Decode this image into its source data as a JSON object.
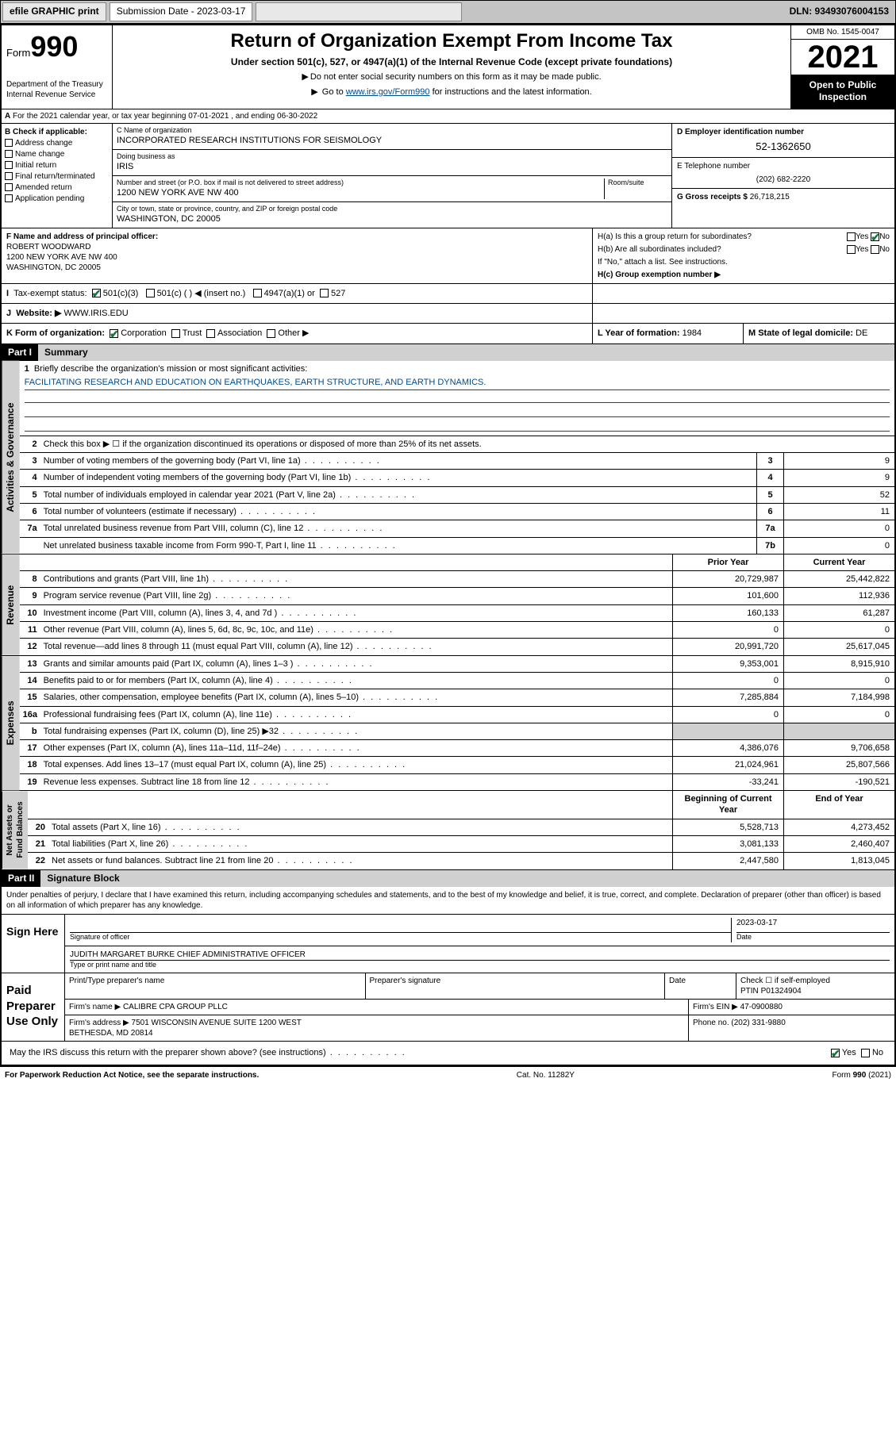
{
  "topbar": {
    "efile": "efile GRAPHIC print",
    "submission_label": "Submission Date - 2023-03-17",
    "dln": "DLN: 93493076004153"
  },
  "header": {
    "form_label": "Form",
    "form_number": "990",
    "dept": "Department of the Treasury\nInternal Revenue Service",
    "title": "Return of Organization Exempt From Income Tax",
    "subtitle": "Under section 501(c), 527, or 4947(a)(1) of the Internal Revenue Code (except private foundations)",
    "note1": "Do not enter social security numbers on this form as it may be made public.",
    "note2_pre": "Go to ",
    "note2_link": "www.irs.gov/Form990",
    "note2_post": " for instructions and the latest information.",
    "omb": "OMB No. 1545-0047",
    "year": "2021",
    "inspection": "Open to Public Inspection"
  },
  "A": {
    "text": "For the 2021 calendar year, or tax year beginning 07-01-2021   , and ending 06-30-2022"
  },
  "B": {
    "title": "B Check if applicable:",
    "opts": [
      "Address change",
      "Name change",
      "Initial return",
      "Final return/terminated",
      "Amended return",
      "Application pending"
    ]
  },
  "C": {
    "name_lbl": "C Name of organization",
    "name": "INCORPORATED RESEARCH INSTITUTIONS FOR SEISMOLOGY",
    "dba_lbl": "Doing business as",
    "dba": "IRIS",
    "street_lbl": "Number and street (or P.O. box if mail is not delivered to street address)",
    "room_lbl": "Room/suite",
    "street": "1200 NEW YORK AVE NW 400",
    "city_lbl": "City or town, state or province, country, and ZIP or foreign postal code",
    "city": "WASHINGTON, DC  20005"
  },
  "D": {
    "lbl": "D Employer identification number",
    "val": "52-1362650"
  },
  "E": {
    "lbl": "E Telephone number",
    "val": "(202) 682-2220"
  },
  "G": {
    "lbl": "G Gross receipts $",
    "val": "26,718,215"
  },
  "F": {
    "lbl": "F  Name and address of principal officer:",
    "name": "ROBERT WOODWARD",
    "addr1": "1200 NEW YORK AVE NW 400",
    "addr2": "WASHINGTON, DC  20005"
  },
  "H": {
    "a": "H(a)  Is this a group return for subordinates?",
    "b": "H(b)  Are all subordinates included?",
    "b_note": "If \"No,\" attach a list. See instructions.",
    "c": "H(c)  Group exemption number ▶",
    "yes": "Yes",
    "no": "No"
  },
  "I": {
    "lbl": "Tax-exempt status:",
    "opts": [
      "501(c)(3)",
      "501(c) (  ) ◀ (insert no.)",
      "4947(a)(1) or",
      "527"
    ]
  },
  "J": {
    "lbl": "Website: ▶",
    "val": "WWW.IRIS.EDU"
  },
  "K": {
    "lbl": "K Form of organization:",
    "opts": [
      "Corporation",
      "Trust",
      "Association",
      "Other ▶"
    ]
  },
  "L": {
    "lbl": "L Year of formation:",
    "val": "1984"
  },
  "M": {
    "lbl": "M State of legal domicile:",
    "val": "DE"
  },
  "partI": {
    "hdr": "Part I",
    "title": "Summary"
  },
  "summary": {
    "q1": "Briefly describe the organization's mission or most significant activities:",
    "mission": "FACILITATING RESEARCH AND EDUCATION ON EARTHQUAKES, EARTH STRUCTURE, AND EARTH DYNAMICS.",
    "q2": "Check this box ▶ ☐  if the organization discontinued its operations or disposed of more than 25% of its net assets.",
    "lines_gov": [
      {
        "n": "3",
        "t": "Number of voting members of the governing body (Part VI, line 1a)",
        "box": "3",
        "v": "9"
      },
      {
        "n": "4",
        "t": "Number of independent voting members of the governing body (Part VI, line 1b)",
        "box": "4",
        "v": "9"
      },
      {
        "n": "5",
        "t": "Total number of individuals employed in calendar year 2021 (Part V, line 2a)",
        "box": "5",
        "v": "52"
      },
      {
        "n": "6",
        "t": "Total number of volunteers (estimate if necessary)",
        "box": "6",
        "v": "11"
      },
      {
        "n": "7a",
        "t": "Total unrelated business revenue from Part VIII, column (C), line 12",
        "box": "7a",
        "v": "0"
      },
      {
        "n": "",
        "t": "Net unrelated business taxable income from Form 990-T, Part I, line 11",
        "box": "7b",
        "v": "0"
      }
    ],
    "col_prior": "Prior Year",
    "col_current": "Current Year",
    "col_boy": "Beginning of Current Year",
    "col_eoy": "End of Year",
    "revenue": [
      {
        "n": "8",
        "t": "Contributions and grants (Part VIII, line 1h)",
        "p": "20,729,987",
        "c": "25,442,822"
      },
      {
        "n": "9",
        "t": "Program service revenue (Part VIII, line 2g)",
        "p": "101,600",
        "c": "112,936"
      },
      {
        "n": "10",
        "t": "Investment income (Part VIII, column (A), lines 3, 4, and 7d )",
        "p": "160,133",
        "c": "61,287"
      },
      {
        "n": "11",
        "t": "Other revenue (Part VIII, column (A), lines 5, 6d, 8c, 9c, 10c, and 11e)",
        "p": "0",
        "c": "0"
      },
      {
        "n": "12",
        "t": "Total revenue—add lines 8 through 11 (must equal Part VIII, column (A), line 12)",
        "p": "20,991,720",
        "c": "25,617,045"
      }
    ],
    "expenses": [
      {
        "n": "13",
        "t": "Grants and similar amounts paid (Part IX, column (A), lines 1–3 )",
        "p": "9,353,001",
        "c": "8,915,910"
      },
      {
        "n": "14",
        "t": "Benefits paid to or for members (Part IX, column (A), line 4)",
        "p": "0",
        "c": "0"
      },
      {
        "n": "15",
        "t": "Salaries, other compensation, employee benefits (Part IX, column (A), lines 5–10)",
        "p": "7,285,884",
        "c": "7,184,998"
      },
      {
        "n": "16a",
        "t": "Professional fundraising fees (Part IX, column (A), line 11e)",
        "p": "0",
        "c": "0"
      },
      {
        "n": "b",
        "t": "Total fundraising expenses (Part IX, column (D), line 25) ▶32",
        "p": "shade",
        "c": "shade"
      },
      {
        "n": "17",
        "t": "Other expenses (Part IX, column (A), lines 11a–11d, 11f–24e)",
        "p": "4,386,076",
        "c": "9,706,658"
      },
      {
        "n": "18",
        "t": "Total expenses. Add lines 13–17 (must equal Part IX, column (A), line 25)",
        "p": "21,024,961",
        "c": "25,807,566"
      },
      {
        "n": "19",
        "t": "Revenue less expenses. Subtract line 18 from line 12",
        "p": "-33,241",
        "c": "-190,521"
      }
    ],
    "netassets": [
      {
        "n": "20",
        "t": "Total assets (Part X, line 16)",
        "p": "5,528,713",
        "c": "4,273,452"
      },
      {
        "n": "21",
        "t": "Total liabilities (Part X, line 26)",
        "p": "3,081,133",
        "c": "2,460,407"
      },
      {
        "n": "22",
        "t": "Net assets or fund balances. Subtract line 21 from line 20",
        "p": "2,447,580",
        "c": "1,813,045"
      }
    ]
  },
  "partII": {
    "hdr": "Part II",
    "title": "Signature Block"
  },
  "sig": {
    "jurat": "Under penalties of perjury, I declare that I have examined this return, including accompanying schedules and statements, and to the best of my knowledge and belief, it is true, correct, and complete. Declaration of preparer (other than officer) is based on all information of which preparer has any knowledge.",
    "sign_here": "Sign Here",
    "sig_officer": "Signature of officer",
    "date": "Date",
    "date_val": "2023-03-17",
    "officer_name": "JUDITH MARGARET BURKE  CHIEF ADMINISTRATIVE OFFICER",
    "type_name": "Type or print name and title",
    "paid": "Paid Preparer Use Only",
    "h1": "Print/Type preparer's name",
    "h2": "Preparer's signature",
    "h3": "Date",
    "check_self": "Check ☐ if self-employed",
    "ptin_lbl": "PTIN",
    "ptin": "P01324904",
    "firm_name_lbl": "Firm's name   ▶",
    "firm_name": "CALIBRE CPA GROUP PLLC",
    "firm_ein_lbl": "Firm's EIN ▶",
    "firm_ein": "47-0900880",
    "firm_addr_lbl": "Firm's address ▶",
    "firm_addr": "7501 WISCONSIN AVENUE SUITE 1200 WEST\nBETHESDA, MD  20814",
    "phone_lbl": "Phone no.",
    "phone": "(202) 331-9880",
    "may_discuss": "May the IRS discuss this return with the preparer shown above? (see instructions)",
    "yes": "Yes",
    "no": "No"
  },
  "footer": {
    "pra": "For Paperwork Reduction Act Notice, see the separate instructions.",
    "cat": "Cat. No. 11282Y",
    "form": "Form 990 (2021)"
  },
  "colors": {
    "link": "#004b8d",
    "check": "#0a7a3a",
    "shade": "#d0d0d0",
    "topbar": "#c4c4c4"
  }
}
